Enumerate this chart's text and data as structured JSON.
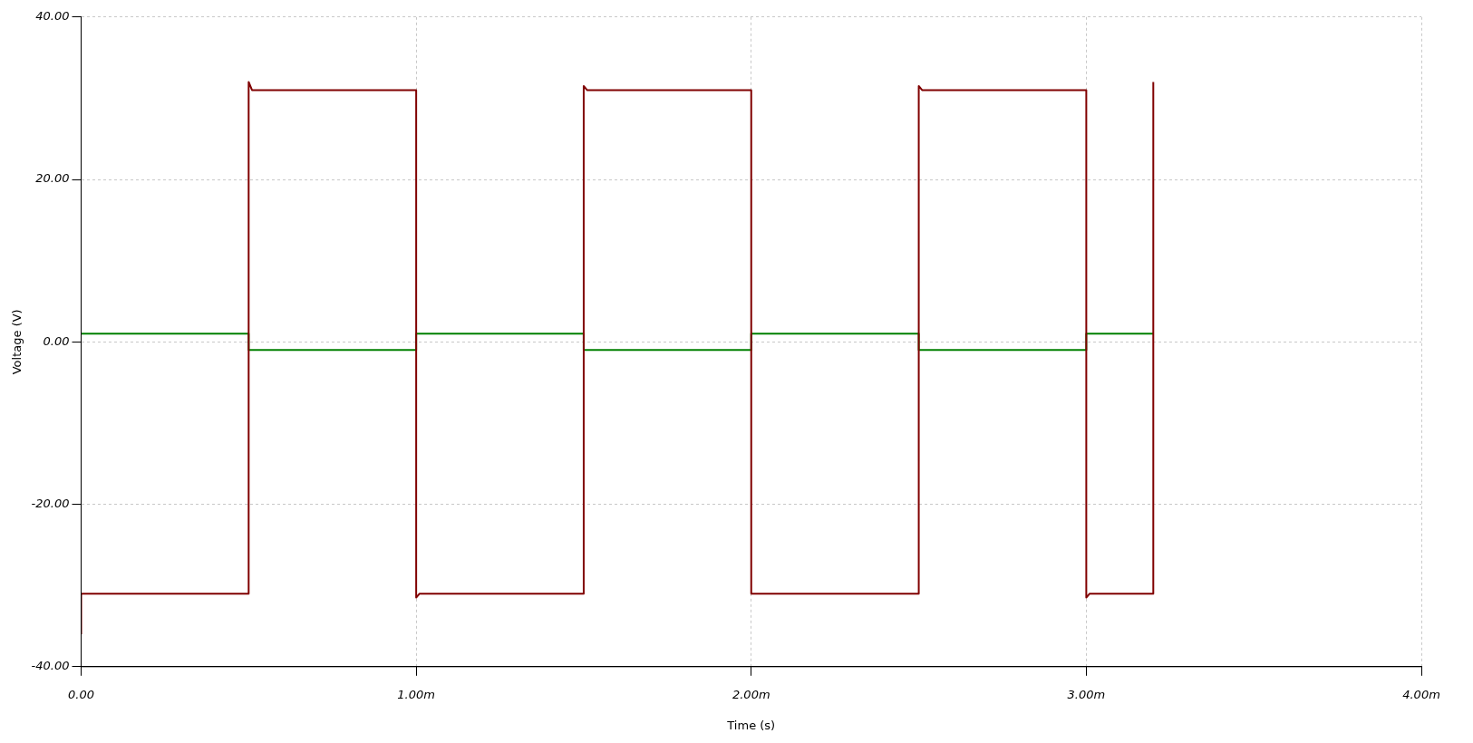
{
  "chart_data": {
    "type": "line",
    "xlabel": "Time (s)",
    "ylabel": "Voltage (V)",
    "xlim": [
      0,
      4
    ],
    "ylim": [
      -40,
      40
    ],
    "xticks": [
      {
        "value": 0,
        "label": "0.00"
      },
      {
        "value": 1,
        "label": "1.00m"
      },
      {
        "value": 2,
        "label": "2.00m"
      },
      {
        "value": 3,
        "label": "3.00m"
      },
      {
        "value": 4,
        "label": "4.00m"
      }
    ],
    "yticks": [
      {
        "value": -40,
        "label": "-40.00"
      },
      {
        "value": -20,
        "label": "-20.00"
      },
      {
        "value": 0,
        "label": "0.00"
      },
      {
        "value": 20,
        "label": "20.00"
      },
      {
        "value": 40,
        "label": "40.00"
      }
    ],
    "grid": true,
    "legend": false,
    "marker": "none",
    "line_style": "solid",
    "series": [
      {
        "color": "#800000",
        "x": [
          0,
          0,
          0.5,
          0.5,
          0.51,
          1,
          1,
          1.01,
          1.5,
          1.5,
          1.51,
          2,
          2,
          2.5,
          2.5,
          2.51,
          3,
          3,
          3.01,
          3.2,
          3.2
        ],
        "values": [
          -36,
          -31,
          -31,
          32,
          31,
          31,
          -31.5,
          -31,
          -31,
          31.5,
          31,
          31,
          -31,
          -31,
          31.5,
          31,
          31,
          -31.5,
          -31,
          -31,
          32
        ]
      },
      {
        "color": "#008000",
        "x": [
          0,
          0.5,
          0.5,
          1,
          1,
          1.5,
          1.5,
          2,
          2,
          2.5,
          2.5,
          3,
          3,
          3.2
        ],
        "values": [
          1,
          1,
          -1,
          -1,
          1,
          1,
          -1,
          -1,
          1,
          1,
          -1,
          -1,
          1,
          1
        ]
      }
    ]
  }
}
